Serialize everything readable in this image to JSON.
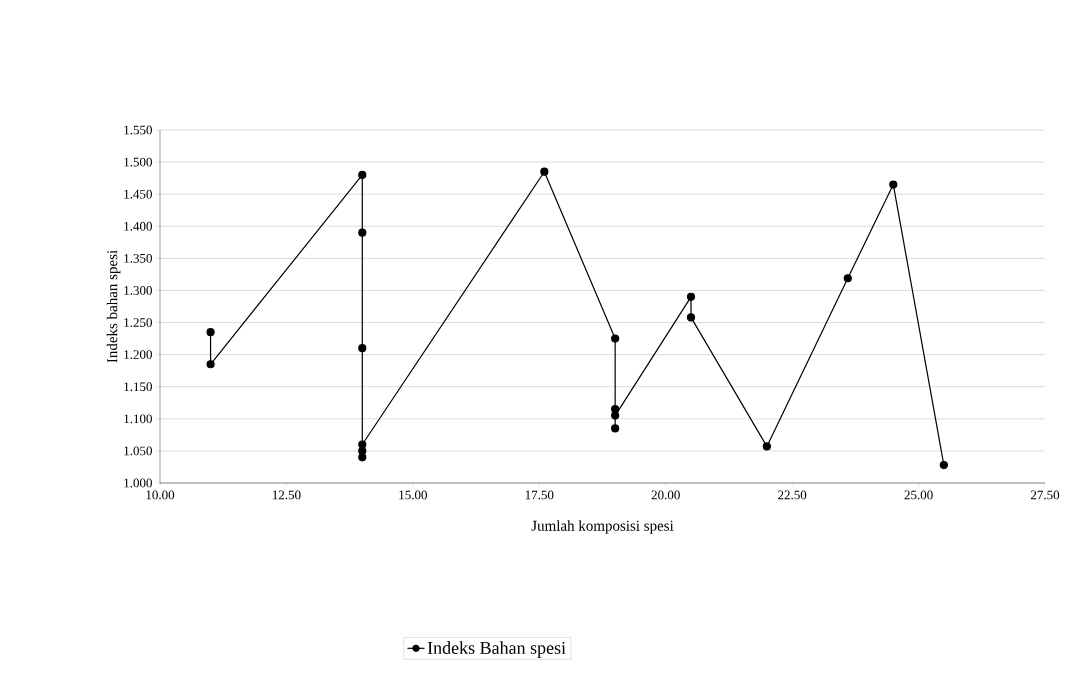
{
  "chart_data": {
    "type": "line",
    "xlabel": "Jumlah komposisi spesi",
    "ylabel": "Indeks bahan spesi",
    "x": [
      11,
      11,
      14,
      14,
      14,
      14,
      14,
      14,
      17.6,
      19,
      19,
      19,
      19,
      20.5,
      20.5,
      22,
      23.6,
      24.5,
      25.5
    ],
    "series": [
      {
        "name": "Indeks Bahan spesi",
        "color": "#000000",
        "values": [
          1.235,
          1.185,
          1.48,
          1.39,
          1.21,
          1.05,
          1.04,
          1.06,
          1.485,
          1.225,
          1.085,
          1.115,
          1.105,
          1.29,
          1.258,
          1.057,
          1.319,
          1.465,
          1.028
        ]
      }
    ],
    "xlim": [
      10,
      27.5
    ],
    "ylim": [
      1.0,
      1.55
    ],
    "xticks": [
      {
        "value": 10,
        "label": "10.00"
      },
      {
        "value": 12.5,
        "label": "12.50"
      },
      {
        "value": 15,
        "label": "15.00"
      },
      {
        "value": 17.5,
        "label": "17.50"
      },
      {
        "value": 20,
        "label": "20.00"
      },
      {
        "value": 22.5,
        "label": "22.50"
      },
      {
        "value": 25,
        "label": "25.00"
      },
      {
        "value": 27.5,
        "label": "27.50"
      }
    ],
    "yticks": [
      {
        "value": 1.0,
        "label": "1.000"
      },
      {
        "value": 1.05,
        "label": "1.050"
      },
      {
        "value": 1.1,
        "label": "1.100"
      },
      {
        "value": 1.15,
        "label": "1.150"
      },
      {
        "value": 1.2,
        "label": "1.200"
      },
      {
        "value": 1.25,
        "label": "1.250"
      },
      {
        "value": 1.3,
        "label": "1.300"
      },
      {
        "value": 1.35,
        "label": "1.350"
      },
      {
        "value": 1.4,
        "label": "1.400"
      },
      {
        "value": 1.45,
        "label": "1.450"
      },
      {
        "value": 1.5,
        "label": "1.500"
      },
      {
        "value": 1.55,
        "label": "1.550"
      }
    ],
    "grid": "y",
    "legend": "bottom",
    "marker": "circle",
    "line_style": "solid"
  }
}
